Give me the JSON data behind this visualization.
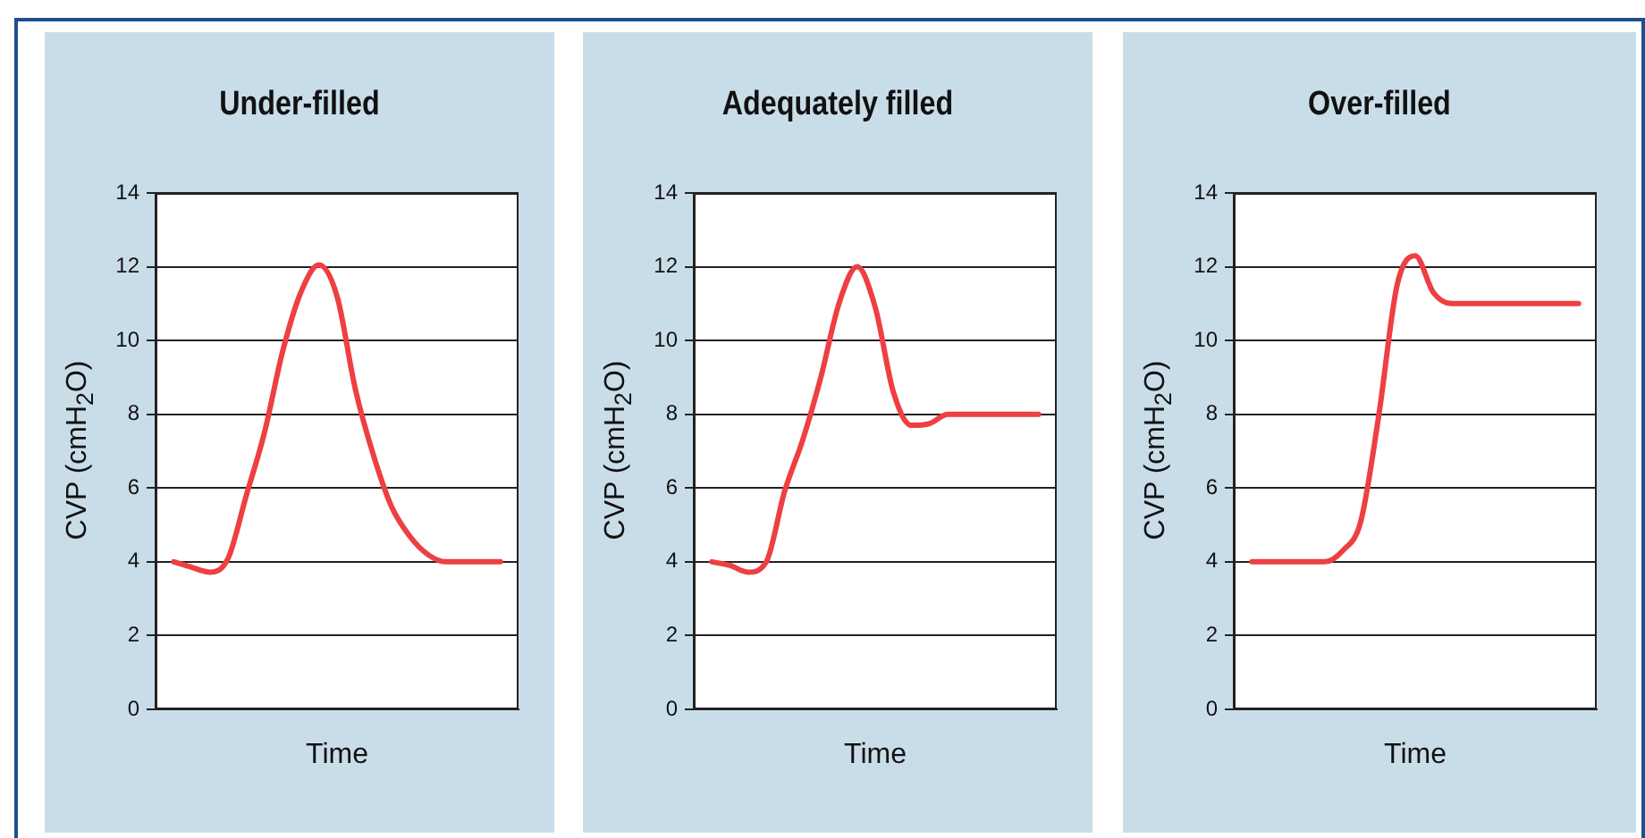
{
  "chart_data": [
    {
      "type": "line",
      "title": "Under-filled",
      "xlabel": "Time",
      "ylabel": "CVP (cmH$_{2}$O)",
      "categories": [
        null,
        null,
        null,
        null,
        null,
        null,
        null,
        null,
        null,
        null,
        null,
        null,
        null,
        null,
        null,
        null,
        null,
        null,
        null,
        null,
        null
      ],
      "series": [
        {
          "color": "#ee3f42",
          "values": [
            null,
            4.0,
            3.85,
            3.72,
            4.1,
            5.8,
            7.5,
            9.7,
            11.3,
            12.05,
            11.2,
            8.7,
            6.9,
            5.5,
            4.7,
            4.2,
            4.0,
            4.0,
            4.0,
            4.0,
            null
          ]
        }
      ],
      "ylim": [
        0,
        14
      ],
      "yticks": [
        0,
        2,
        4,
        6,
        8,
        10,
        12,
        14
      ],
      "grid": "y",
      "tick_labels": "y",
      "marker": "none",
      "line_style": "solid"
    },
    {
      "type": "line",
      "title": "Adequately filled",
      "xlabel": "Time",
      "ylabel": "CVP (cmH$_{2}$O)",
      "categories": [
        null,
        null,
        null,
        null,
        null,
        null,
        null,
        null,
        null,
        null,
        null,
        null,
        null,
        null,
        null,
        null,
        null,
        null,
        null,
        null,
        null
      ],
      "series": [
        {
          "color": "#ee3f42",
          "values": [
            null,
            4.0,
            3.9,
            3.72,
            4.0,
            5.9,
            7.3,
            9.0,
            11.0,
            12.0,
            10.9,
            8.6,
            7.7,
            7.75,
            8.0,
            8.0,
            8.0,
            8.0,
            8.0,
            8.0,
            null
          ]
        }
      ],
      "ylim": [
        0,
        14
      ],
      "yticks": [
        0,
        2,
        4,
        6,
        8,
        10,
        12,
        14
      ],
      "grid": "y",
      "tick_labels": "y",
      "marker": "none",
      "line_style": "solid"
    },
    {
      "type": "line",
      "title": "Over-filled",
      "xlabel": "Time",
      "ylabel": "CVP (cmH$_{2}$O)",
      "categories": [
        null,
        null,
        null,
        null,
        null,
        null,
        null,
        null,
        null,
        null,
        null,
        null,
        null,
        null,
        null,
        null,
        null,
        null,
        null,
        null,
        null
      ],
      "series": [
        {
          "color": "#ee3f42",
          "values": [
            null,
            4.0,
            4.0,
            4.0,
            4.0,
            4.0,
            4.3,
            5.1,
            8.0,
            11.5,
            12.3,
            11.3,
            11.0,
            11.0,
            11.0,
            11.0,
            11.0,
            11.0,
            11.0,
            11.0,
            null
          ]
        }
      ],
      "ylim": [
        0,
        14
      ],
      "yticks": [
        0,
        2,
        4,
        6,
        8,
        10,
        12,
        14
      ],
      "grid": "y",
      "tick_labels": "y",
      "marker": "none",
      "line_style": "solid"
    }
  ]
}
